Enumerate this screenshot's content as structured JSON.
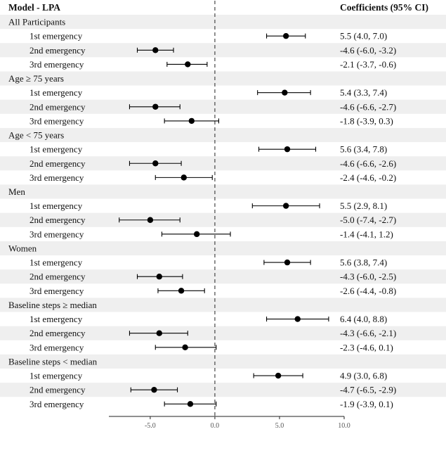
{
  "chart_data": {
    "type": "forest",
    "header_left": "Model - LPA",
    "header_right": "Coefficients (95% CI)",
    "xlim": [
      -8.2,
      10.0
    ],
    "xticks": [
      -5.0,
      0.0,
      5.0,
      10.0
    ],
    "xtick_labels": [
      "-5.0",
      "0.0",
      "5.0",
      "10.0"
    ],
    "reference_line": 0,
    "groups": [
      {
        "label": "All Participants",
        "rows": [
          {
            "label": "1st emergency",
            "est": 5.5,
            "lo": 4.0,
            "hi": 7.0,
            "ci_text": "5.5 (4.0, 7.0)"
          },
          {
            "label": "2nd emergency",
            "est": -4.6,
            "lo": -6.0,
            "hi": -3.2,
            "ci_text": "-4.6 (-6.0, -3.2)"
          },
          {
            "label": "3rd emergency",
            "est": -2.1,
            "lo": -3.7,
            "hi": -0.6,
            "ci_text": "-2.1 (-3.7, -0.6)"
          }
        ]
      },
      {
        "label": "Age ≥ 75 years",
        "rows": [
          {
            "label": "1st emergency",
            "est": 5.4,
            "lo": 3.3,
            "hi": 7.4,
            "ci_text": "5.4 (3.3, 7.4)"
          },
          {
            "label": "2nd emergency",
            "est": -4.6,
            "lo": -6.6,
            "hi": -2.7,
            "ci_text": "-4.6 (-6.6, -2.7)"
          },
          {
            "label": "3rd emergency",
            "est": -1.8,
            "lo": -3.9,
            "hi": 0.3,
            "ci_text": "-1.8 (-3.9, 0.3)"
          }
        ]
      },
      {
        "label": "Age < 75 years",
        "rows": [
          {
            "label": "1st emergency",
            "est": 5.6,
            "lo": 3.4,
            "hi": 7.8,
            "ci_text": "5.6 (3.4, 7.8)"
          },
          {
            "label": "2nd emergency",
            "est": -4.6,
            "lo": -6.6,
            "hi": -2.6,
            "ci_text": "-4.6 (-6.6, -2.6)"
          },
          {
            "label": "3rd emergency",
            "est": -2.4,
            "lo": -4.6,
            "hi": -0.2,
            "ci_text": "-2.4 (-4.6, -0.2)"
          }
        ]
      },
      {
        "label": "Men",
        "rows": [
          {
            "label": "1st emergency",
            "est": 5.5,
            "lo": 2.9,
            "hi": 8.1,
            "ci_text": "5.5 (2.9, 8.1)"
          },
          {
            "label": "2nd emergency",
            "est": -5.0,
            "lo": -7.4,
            "hi": -2.7,
            "ci_text": "-5.0 (-7.4, -2.7)"
          },
          {
            "label": "3rd emergency",
            "est": -1.4,
            "lo": -4.1,
            "hi": 1.2,
            "ci_text": "-1.4 (-4.1, 1.2)"
          }
        ]
      },
      {
        "label": "Women",
        "rows": [
          {
            "label": "1st emergency",
            "est": 5.6,
            "lo": 3.8,
            "hi": 7.4,
            "ci_text": "5.6 (3.8, 7.4)"
          },
          {
            "label": "2nd emergency",
            "est": -4.3,
            "lo": -6.0,
            "hi": -2.5,
            "ci_text": "-4.3 (-6.0, -2.5)"
          },
          {
            "label": "3rd emergency",
            "est": -2.6,
            "lo": -4.4,
            "hi": -0.8,
            "ci_text": "-2.6 (-4.4, -0.8)"
          }
        ]
      },
      {
        "label": "Baseline steps ≥ median",
        "rows": [
          {
            "label": "1st emergency",
            "est": 6.4,
            "lo": 4.0,
            "hi": 8.8,
            "ci_text": "6.4 (4.0, 8.8)"
          },
          {
            "label": "2nd emergency",
            "est": -4.3,
            "lo": -6.6,
            "hi": -2.1,
            "ci_text": "-4.3 (-6.6, -2.1)"
          },
          {
            "label": "3rd emergency",
            "est": -2.3,
            "lo": -4.6,
            "hi": 0.1,
            "ci_text": "-2.3 (-4.6, 0.1)"
          }
        ]
      },
      {
        "label": "Baseline steps < median",
        "rows": [
          {
            "label": "1st emergency",
            "est": 4.9,
            "lo": 3.0,
            "hi": 6.8,
            "ci_text": "4.9 (3.0, 6.8)"
          },
          {
            "label": "2nd emergency",
            "est": -4.7,
            "lo": -6.5,
            "hi": -2.9,
            "ci_text": "-4.7 (-6.5, -2.9)"
          },
          {
            "label": "3rd emergency",
            "est": -1.9,
            "lo": -3.9,
            "hi": 0.1,
            "ci_text": "-1.9 (-3.9, 0.1)"
          }
        ]
      }
    ],
    "colors": {
      "stripe": "#efefef",
      "point": "#000000",
      "text": "#111111",
      "axis_text": "#555555"
    }
  }
}
